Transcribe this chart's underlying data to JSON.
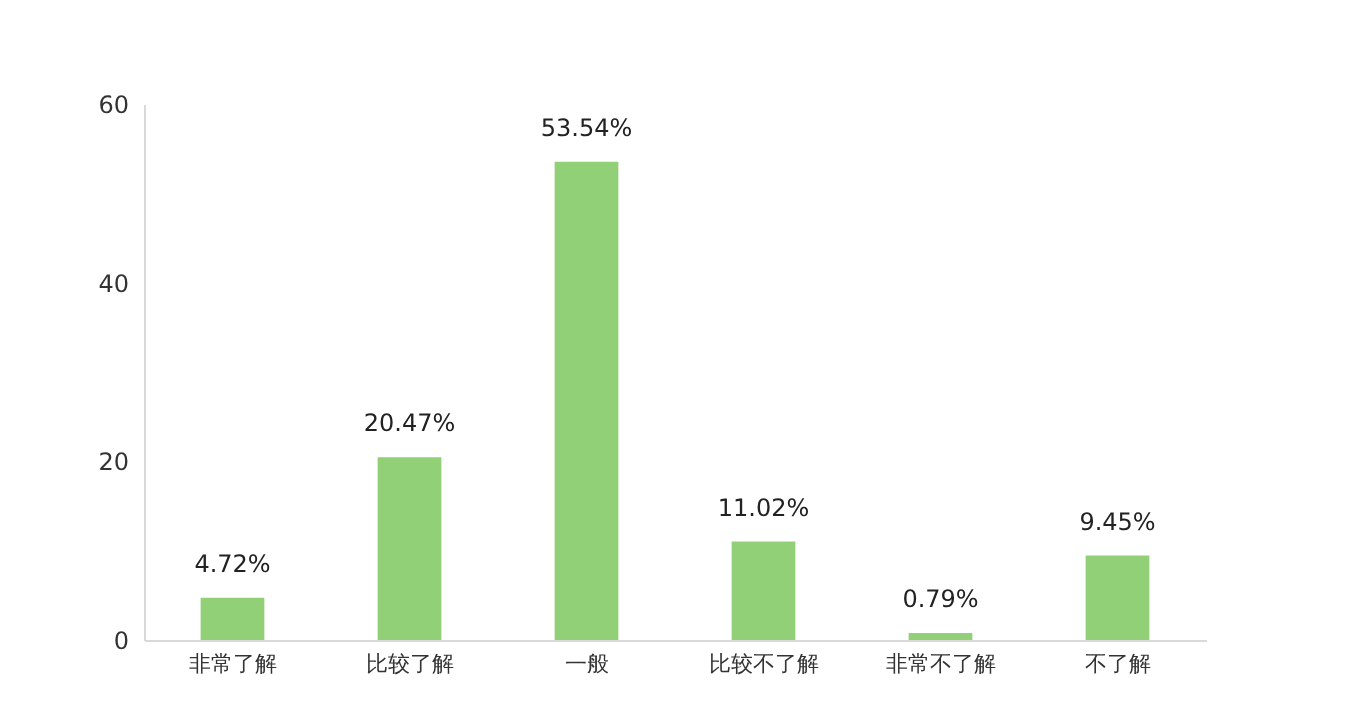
{
  "chart_data": {
    "type": "bar",
    "categories": [
      "非常了解",
      "比较了解",
      "一般",
      "比较不了解",
      "非常不了解",
      "不了解"
    ],
    "values": [
      4.72,
      20.47,
      53.54,
      11.02,
      0.79,
      9.45
    ],
    "value_labels": [
      "4.72%",
      "20.47%",
      "53.54%",
      "11.02%",
      "0.79%",
      "9.45%"
    ],
    "color": "#92d077",
    "ylim": [
      0,
      60
    ],
    "yticks": [
      0,
      20,
      40,
      60
    ],
    "grid": false
  }
}
